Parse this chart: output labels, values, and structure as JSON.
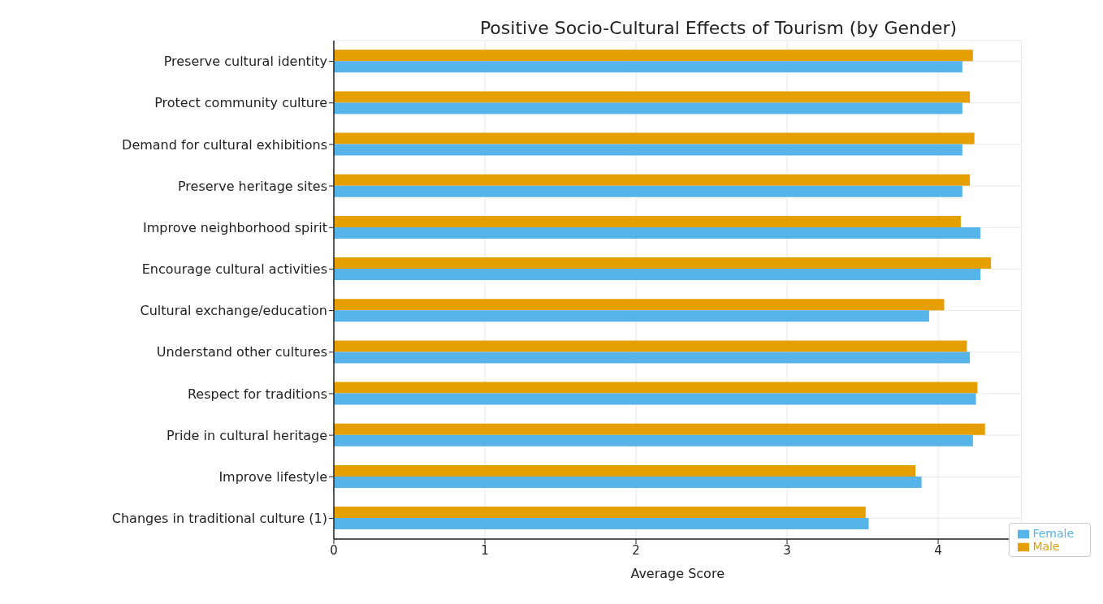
{
  "chart_data": {
    "type": "bar",
    "orientation": "horizontal",
    "title": "Positive Socio-Cultural Effects of Tourism (by Gender)",
    "xlabel": "Average Score",
    "categories": [
      "Preserve cultural identity",
      "Protect community culture",
      "Demand for cultural exhibitions",
      "Preserve heritage sites",
      "Improve neighborhood spirit",
      "Encourage cultural activities",
      "Cultural exchange/education",
      "Understand other cultures",
      "Respect for traditions",
      "Pride in cultural heritage",
      "Improve lifestyle",
      "Changes in traditional culture (1)"
    ],
    "series": [
      {
        "name": "Male",
        "color": "#e69f00",
        "values": [
          4.23,
          4.21,
          4.24,
          4.21,
          4.15,
          4.35,
          4.04,
          4.19,
          4.26,
          4.31,
          3.85,
          3.52
        ]
      },
      {
        "name": "Female",
        "color": "#56b4e9",
        "values": [
          4.16,
          4.16,
          4.16,
          4.16,
          4.28,
          4.28,
          3.94,
          4.21,
          4.25,
          4.23,
          3.89,
          3.54
        ]
      }
    ],
    "xlim": [
      0,
      4.55
    ],
    "xticks": [
      0,
      1,
      2,
      3,
      4
    ],
    "grid": true,
    "legend": "bottom right"
  }
}
